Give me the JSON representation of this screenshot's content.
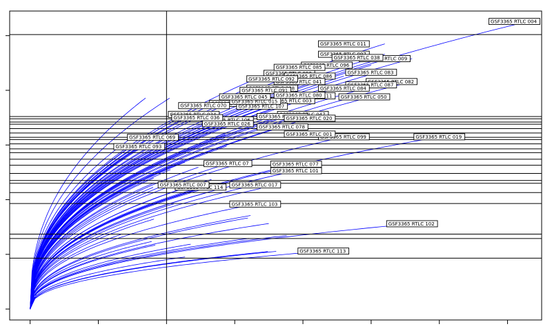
{
  "chart_data": {
    "type": "line",
    "title": "",
    "xlabel": "",
    "ylabel": "",
    "xlim": [
      -0.3,
      7.5
    ],
    "ylim": [
      -0.2,
      5.45
    ],
    "grid": false,
    "line_color": "#0000ff",
    "hlines": [
      5.02,
      3.52,
      3.48,
      3.42,
      3.38,
      3.3,
      3.22,
      3.14,
      3.1,
      3.02,
      2.93,
      2.86,
      2.74,
      2.63,
      2.48,
      2.35,
      2.3,
      2.13,
      1.93,
      1.37,
      1.29,
      0.93
    ],
    "vlines": [
      2.0
    ],
    "hline_color": "#000000",
    "series": [
      {
        "name": "GSF3365_RTLC_004",
        "y_end": 5.26,
        "x_end": 7.3
      },
      {
        "name": "GSF3365_RTLC_011",
        "y_end": 4.85,
        "x_end": 5.2
      },
      {
        "name": "GSF3365_RTLC_097",
        "y_end": 4.66,
        "x_end": 5.2
      },
      {
        "name": "GSF3365_RTLC_009",
        "y_end": 4.58,
        "x_end": 5.6
      },
      {
        "name": "GSF3365_RTLC_038",
        "y_end": 4.6,
        "x_end": 5.2
      },
      {
        "name": "GSF3365_RTLC_096",
        "y_end": 4.46,
        "x_end": 5.0
      },
      {
        "name": "GSF3365_RTLC_083",
        "y_end": 4.33,
        "x_end": 5.1
      },
      {
        "name": "GSF3365_RTLC_090",
        "y_end": 4.31,
        "x_end": 3.5
      },
      {
        "name": "GSF3365_RTLC_082",
        "y_end": 4.16,
        "x_end": 5.6
      },
      {
        "name": "GSF3365_RTLC_086",
        "y_end": 4.26,
        "x_end": 4.6
      },
      {
        "name": "GSF3365_RTLC_041",
        "y_end": 4.16,
        "x_end": 3.7
      },
      {
        "name": "GSF3365_RTLC_087",
        "y_end": 4.1,
        "x_end": 5.1
      },
      {
        "name": "GSF3365_RTLC_084",
        "y_end": 4.04,
        "x_end": 4.5
      },
      {
        "name": "GSF3365_RTLC_088",
        "y_end": 4.04,
        "x_end": 3.2
      },
      {
        "name": "GSF3365_RTLC_111",
        "y_end": 3.9,
        "x_end": 4.2
      },
      {
        "name": "GSF3365_RTLC_050",
        "y_end": 3.88,
        "x_end": 5.0
      },
      {
        "name": "GSF3365_RTLC_003",
        "y_end": 3.81,
        "x_end": 3.9
      },
      {
        "name": "GSF3365_RTLC_065",
        "y_end": 3.76,
        "x_end": 2.6
      },
      {
        "name": "GSF3365_RTLC_107",
        "y_end": 3.71,
        "x_end": 3.4
      },
      {
        "name": "GSF3365_RTLC_047",
        "y_end": 3.56,
        "x_end": 4.0
      },
      {
        "name": "GSF3365_RTLC_034",
        "y_end": 3.56,
        "x_end": 2.4
      },
      {
        "name": "GSF3365_RTLC_049",
        "y_end": 3.52,
        "x_end": 3.7
      },
      {
        "name": "GSF3365_RTLC_020",
        "y_end": 3.49,
        "x_end": 4.1
      },
      {
        "name": "GSF3365_RTLC_106",
        "y_end": 3.46,
        "x_end": 2.9
      },
      {
        "name": "GSF3365_RTLC_026",
        "y_end": 3.39,
        "x_end": 2.9
      },
      {
        "name": "GSF3365_RTLC_078",
        "y_end": 3.33,
        "x_end": 3.7
      },
      {
        "name": "GSF3365_RTLC_019",
        "y_end": 3.15,
        "x_end": 6.0
      },
      {
        "name": "GSF3365_RTLC_099",
        "y_end": 3.15,
        "x_end": 4.6
      },
      {
        "name": "GSF3365_RTLC_069",
        "y_end": 3.14,
        "x_end": 2.0
      },
      {
        "name": "GSF3365_RTLC_093",
        "y_end": 2.97,
        "x_end": 1.6
      },
      {
        "name": "GSF3365_RTLC_077",
        "y_end": 2.65,
        "x_end": 3.9
      },
      {
        "name": "GSF3365_RTLC_07",
        "y_end": 2.66,
        "x_end": 2.9
      },
      {
        "name": "GSF3365_RTLC_101",
        "y_end": 2.53,
        "x_end": 3.9
      },
      {
        "name": "GSF3365_RTLC_017",
        "y_end": 2.27,
        "x_end": 3.3
      },
      {
        "name": "GSF3365_RTLC_114",
        "y_end": 2.23,
        "x_end": 2.5
      },
      {
        "name": "GSF3365_RTLC_103",
        "y_end": 1.92,
        "x_end": 3.3
      },
      {
        "name": "GSF3365_RTLC_102",
        "y_end": 1.56,
        "x_end": 5.6
      },
      {
        "name": "GSF3365_RTLC_113",
        "y_end": 1.06,
        "x_end": 4.3
      }
    ],
    "extra_curve_count": 40,
    "labels": [
      {
        "text": "GSF3365_RTLC_004",
        "x": 7.1,
        "y": 5.26
      },
      {
        "text": "GSF3365_RTLC_011",
        "x": 4.6,
        "y": 4.85
      },
      {
        "text": "GSF3365_RTLC_097",
        "x": 4.6,
        "y": 4.66
      },
      {
        "text": "GSF3365_RTLC_009",
        "x": 5.2,
        "y": 4.58
      },
      {
        "text": "GSF3365_RTLC_038",
        "x": 4.8,
        "y": 4.6
      },
      {
        "text": "GSF3365_RTLC_096",
        "x": 4.35,
        "y": 4.46
      },
      {
        "text": "GSF3365_RTLC_083",
        "x": 5.0,
        "y": 4.33
      },
      {
        "text": "GSF3365_RTLC_090",
        "x": 3.8,
        "y": 4.31
      },
      {
        "text": "GSF3365_RTLC_082",
        "x": 5.3,
        "y": 4.16
      },
      {
        "text": "GSF3365_RTLC_086",
        "x": 4.1,
        "y": 4.26
      },
      {
        "text": "GSF3365_RTLC_041",
        "x": 3.95,
        "y": 4.16
      },
      {
        "text": "GSF3365_RTLC_087",
        "x": 5.0,
        "y": 4.1
      },
      {
        "text": "GSF3365_RTLC_084",
        "x": 4.6,
        "y": 4.04
      },
      {
        "text": "GSF3365_RTLC_088",
        "x": 3.55,
        "y": 4.04
      },
      {
        "text": "GSF3365_RTLC_111",
        "x": 4.1,
        "y": 3.9
      },
      {
        "text": "GSF3365_RTLC_050",
        "x": 4.9,
        "y": 3.88
      },
      {
        "text": "GSF3365_RTLC_003",
        "x": 3.8,
        "y": 3.81
      },
      {
        "text": "GSF3365_RTLC_065",
        "x": 3.0,
        "y": 3.76
      },
      {
        "text": "GSF3365_RTLC_107",
        "x": 3.4,
        "y": 3.71
      },
      {
        "text": "GSF3365_RTLC_047",
        "x": 4.0,
        "y": 3.56
      },
      {
        "text": "GSF3365_RTLC_034",
        "x": 2.4,
        "y": 3.56
      },
      {
        "text": "GSF3365_RTLC_049",
        "x": 3.7,
        "y": 3.52
      },
      {
        "text": "GSF3365_RTLC_020",
        "x": 4.1,
        "y": 3.49
      },
      {
        "text": "GSF3365_RTLC_106",
        "x": 2.9,
        "y": 3.46
      },
      {
        "text": "GSF3365_RTLC_026",
        "x": 2.9,
        "y": 3.39
      },
      {
        "text": "GSF3365_RTLC_078",
        "x": 3.7,
        "y": 3.33
      },
      {
        "text": "GSF3365_RTLC_019",
        "x": 6.0,
        "y": 3.15
      },
      {
        "text": "GSF3365_RTLC_099",
        "x": 4.6,
        "y": 3.15
      },
      {
        "text": "GSF3365_RTLC_069",
        "x": 1.8,
        "y": 3.14
      },
      {
        "text": "GSF3365_RTLC_093",
        "x": 1.6,
        "y": 2.97
      },
      {
        "text": "GSF3365_RTLC_077",
        "x": 3.9,
        "y": 2.65
      },
      {
        "text": "GSF3365_RTLC_07",
        "x": 2.9,
        "y": 2.66
      },
      {
        "text": "GSF3365_RTLC_101",
        "x": 3.9,
        "y": 2.53
      },
      {
        "text": "GSF3365_RTLC_017",
        "x": 3.3,
        "y": 2.27
      },
      {
        "text": "GSF3365_RTLC_114",
        "x": 2.5,
        "y": 2.23
      },
      {
        "text": "GSF3365_RTLC_103",
        "x": 3.3,
        "y": 1.92
      },
      {
        "text": "GSF3365_RTLC_102",
        "x": 5.6,
        "y": 1.56
      },
      {
        "text": "GSF3365_RTLC_113",
        "x": 4.3,
        "y": 1.06
      },
      {
        "text": "GSF3365_RTLC_007",
        "x": 2.25,
        "y": 2.27
      },
      {
        "text": "GSF3365_RTLC_036",
        "x": 2.45,
        "y": 3.5
      },
      {
        "text": "GSF3365_RTLC_015",
        "x": 3.3,
        "y": 3.8
      },
      {
        "text": "GSF3365_RTLC_070",
        "x": 2.55,
        "y": 3.72
      },
      {
        "text": "GSF3365_RTLC_091",
        "x": 3.45,
        "y": 4.0
      },
      {
        "text": "GSF3365_RTLC_092",
        "x": 3.55,
        "y": 4.21
      },
      {
        "text": "GSF3365_RTLC_085",
        "x": 3.95,
        "y": 4.42
      },
      {
        "text": "GSF3365_RTLC_080",
        "x": 3.95,
        "y": 3.91
      },
      {
        "text": "GSF3365_RTLC_045",
        "x": 3.15,
        "y": 3.88
      },
      {
        "text": "GSF3365_RTLC_001",
        "x": 4.1,
        "y": 3.2
      }
    ]
  }
}
